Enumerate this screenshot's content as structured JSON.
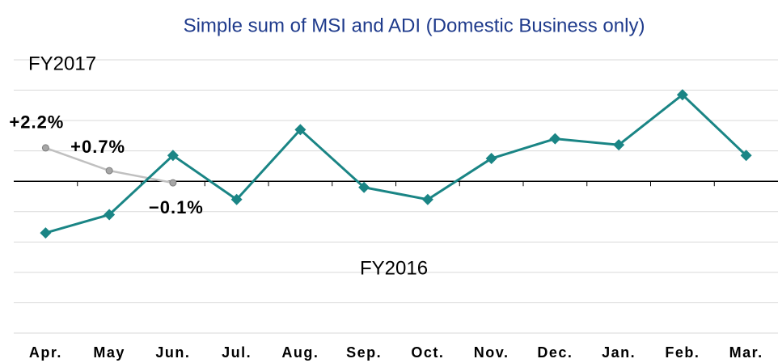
{
  "chart_data": {
    "type": "line",
    "title": "Simple sum of MSI and ADI (Domestic Business only)",
    "categories": [
      "Apr.",
      "May",
      "Jun.",
      "Jul.",
      "Aug.",
      "Sep.",
      "Oct.",
      "Nov.",
      "Dec.",
      "Jan.",
      "Feb.",
      "Mar."
    ],
    "series": [
      {
        "name": "FY2017",
        "color": "#c0c0c0",
        "values": [
          2.2,
          0.7,
          -0.1,
          null,
          null,
          null,
          null,
          null,
          null,
          null,
          null,
          null
        ],
        "value_labels": [
          "+2.2%",
          "+0.7%",
          "−0.1%",
          null,
          null,
          null,
          null,
          null,
          null,
          null,
          null,
          null
        ]
      },
      {
        "name": "FY2016",
        "color": "#1a8585",
        "values": [
          -3.4,
          -2.2,
          1.7,
          -1.2,
          3.4,
          -0.4,
          -1.2,
          1.5,
          2.8,
          2.4,
          5.7,
          1.7
        ]
      }
    ],
    "ylim": [
      -10,
      8
    ],
    "yticks": [
      -10,
      -8,
      -6,
      -4,
      -2,
      0,
      2,
      4,
      6,
      8
    ],
    "grid": true
  }
}
